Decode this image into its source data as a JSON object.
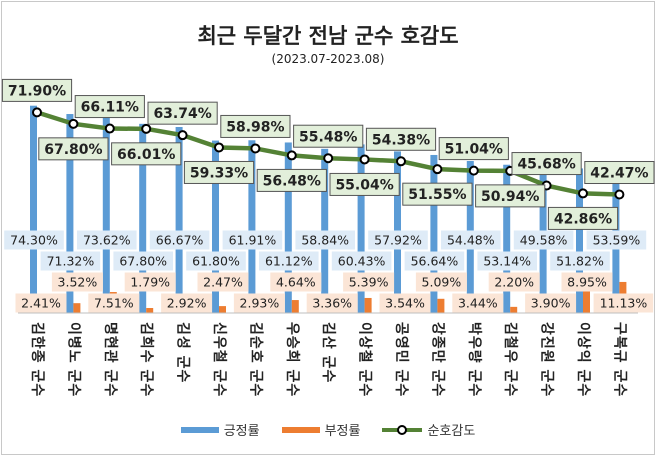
{
  "chart_data": {
    "type": "bar",
    "title": "최근 두달간 전남 군수 호감도",
    "subtitle": "(2023.07-2023.08)",
    "categories": [
      "김한종 군수",
      "이병노 군수",
      "명현관 군수",
      "김희수 군수",
      "김성 군수",
      "신우철 군수",
      "김순호 군수",
      "우승희 군수",
      "김산 군수",
      "이상철 군수",
      "공영민 군수",
      "강종만 군수",
      "박우량 군수",
      "김철우 군수",
      "강진원 군수",
      "이상익 군수",
      "구복규 군수"
    ],
    "series": [
      {
        "name": "긍정률",
        "kind": "bar",
        "color": "#5b9bd5",
        "values": [
          74.3,
          71.32,
          73.62,
          67.8,
          66.67,
          61.8,
          61.91,
          61.12,
          58.84,
          60.43,
          57.92,
          56.64,
          54.48,
          53.14,
          49.58,
          51.82,
          53.59
        ]
      },
      {
        "name": "부정률",
        "kind": "bar",
        "color": "#ed7d31",
        "values": [
          2.41,
          3.52,
          7.51,
          1.79,
          2.92,
          2.47,
          2.93,
          4.64,
          3.36,
          5.39,
          3.54,
          5.09,
          3.44,
          2.2,
          3.9,
          8.95,
          11.13
        ]
      },
      {
        "name": "순호감도",
        "kind": "line",
        "color": "#548235",
        "values": [
          71.9,
          67.8,
          66.11,
          66.01,
          63.74,
          59.33,
          58.98,
          56.48,
          55.48,
          55.04,
          54.38,
          51.55,
          51.04,
          50.94,
          45.68,
          42.86,
          42.47
        ]
      }
    ],
    "value_format": "percent_2dp",
    "ylim": [
      0,
      80
    ],
    "grid": false,
    "legend_position": "bottom"
  }
}
